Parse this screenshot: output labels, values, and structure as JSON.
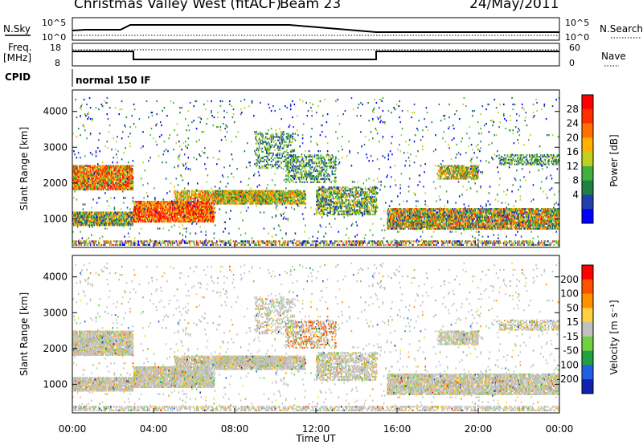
{
  "header": {
    "title": "Christmas Valley West (fitACF)",
    "beam": "Beam 23",
    "date": "24/May/2011"
  },
  "top_panels": {
    "nsky": {
      "label": "N.Sky",
      "tick_top": "10^5",
      "tick_bottom": "10^0"
    },
    "nsearch": {
      "label": "N.Search",
      "tick_top": "10^5",
      "tick_bottom": "10^0"
    },
    "freq": {
      "label_line1": "Freq.",
      "label_line2": "[MHz]",
      "tick_top": "18",
      "tick_bottom": "8"
    },
    "nave": {
      "label": "Nave",
      "tick_top": "60",
      "tick_bottom": "0"
    },
    "cpid": {
      "label": "CPID",
      "value": "normal 150 IF"
    }
  },
  "chart_data": [
    {
      "type": "heatmap",
      "name": "power",
      "ylabel": "Slant Range [km]",
      "xlabel": "",
      "xlim": [
        0,
        24
      ],
      "ylim": [
        200,
        4600
      ],
      "yticks": [
        "1000",
        "2000",
        "3000",
        "4000"
      ],
      "colorbar_label": "Power [dB]",
      "colorbar_ticks": [
        "4",
        "8",
        "12",
        "16",
        "20",
        "24",
        "28"
      ],
      "colorbar_colors": [
        "#0000ff",
        "#2040b0",
        "#208040",
        "#40b040",
        "#c0d020",
        "#ffb000",
        "#ff7000",
        "#ff3000",
        "#ff0000"
      ]
    },
    {
      "type": "heatmap",
      "name": "velocity",
      "ylabel": "Slant Range [km]",
      "xlabel": "Time UT",
      "xlim": [
        0,
        24
      ],
      "ylim": [
        200,
        4600
      ],
      "yticks": [
        "1000",
        "2000",
        "3000",
        "4000"
      ],
      "xticks": [
        "00:00",
        "04:00",
        "08:00",
        "12:00",
        "16:00",
        "20:00",
        "00:00"
      ],
      "colorbar_label": "Velocity [m s⁻¹]",
      "colorbar_ticks": [
        "200",
        "100",
        "50",
        "15",
        "-15",
        "-50",
        "-100",
        "-200"
      ],
      "colorbar_colors": [
        "#1020b0",
        "#2060e0",
        "#20a040",
        "#70d040",
        "#c0c0c0",
        "#ffd040",
        "#ff9000",
        "#ff5000",
        "#ff0000"
      ]
    }
  ]
}
